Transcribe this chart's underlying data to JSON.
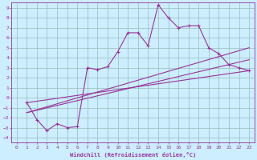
{
  "xlabel": "Windchill (Refroidissement éolien,°C)",
  "xlim": [
    -0.5,
    23.5
  ],
  "ylim": [
    -4.5,
    9.5
  ],
  "xticks": [
    0,
    1,
    2,
    3,
    4,
    5,
    6,
    7,
    8,
    9,
    10,
    11,
    12,
    13,
    14,
    15,
    16,
    17,
    18,
    19,
    20,
    21,
    22,
    23
  ],
  "yticks": [
    -4,
    -3,
    -2,
    -1,
    0,
    1,
    2,
    3,
    4,
    5,
    6,
    7,
    8,
    9
  ],
  "bg_color": "#cceeff",
  "line_color": "#993399",
  "grid_color": "#99bbbb",
  "line1_x": [
    1,
    2,
    3,
    4,
    5,
    6,
    7,
    8,
    9,
    10,
    11,
    12,
    13,
    14,
    15,
    16,
    17,
    18,
    19,
    20,
    21,
    22,
    23
  ],
  "line1_y": [
    -0.5,
    -2.2,
    -3.3,
    -2.6,
    -3.0,
    -2.9,
    3.0,
    2.8,
    3.1,
    4.6,
    6.5,
    6.5,
    5.2,
    9.3,
    8.0,
    7.0,
    7.2,
    7.2,
    5.0,
    4.4,
    3.3,
    3.0,
    2.7
  ],
  "line2_x": [
    1,
    23
  ],
  "line2_y": [
    -0.5,
    2.7
  ],
  "line3_x": [
    1,
    23
  ],
  "line3_y": [
    -1.5,
    5.0
  ],
  "line4_x": [
    1,
    23
  ],
  "line4_y": [
    -1.5,
    3.8
  ],
  "figsize": [
    3.2,
    2.0
  ],
  "dpi": 100
}
